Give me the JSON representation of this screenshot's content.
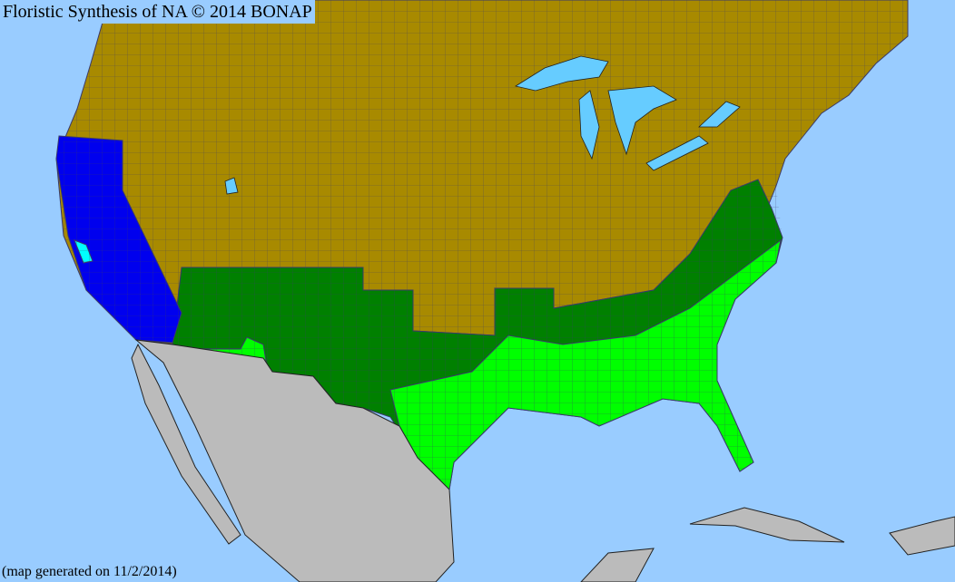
{
  "title": "Floristic Synthesis of NA © 2014 BONAP",
  "footer": "(map generated on 11/2/2014)",
  "colors": {
    "ocean": "#99ccff",
    "lakes": "#66ccff",
    "present_not_rare": "#a88a00",
    "native_state": "#008000",
    "native_county": "#00ff00",
    "introduced_state": "#0000ee",
    "introduced_county": "#00ffff",
    "outside_area": "#bbbbbb",
    "county_lines": "#3a3a6a"
  }
}
